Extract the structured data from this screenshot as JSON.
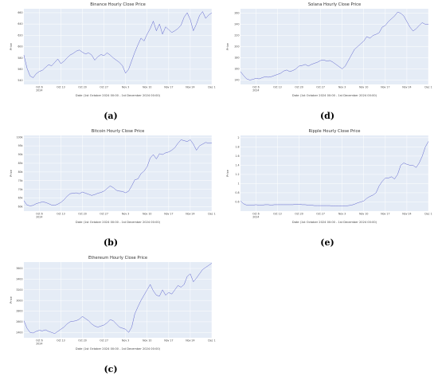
{
  "panels": [
    {
      "caption": "(a)"
    },
    {
      "caption": "(b)"
    },
    {
      "caption": "(c)"
    },
    {
      "caption": "(d)"
    },
    {
      "caption": "(e)"
    }
  ],
  "chart_data": [
    {
      "type": "line",
      "title": "Binance Hourly Close Price",
      "xlabel": "Date (1st October 2024 00:00 - 1st December 2024 00:00)",
      "ylabel": "Price",
      "xlim": [
        0,
        61
      ],
      "ylim": [
        533,
        667
      ],
      "grid": true,
      "x_ticks": [
        {
          "v": 5,
          "l": "Oct 6",
          "s": "2024"
        },
        {
          "v": 12,
          "l": "Oct 13"
        },
        {
          "v": 19,
          "l": "Oct 20"
        },
        {
          "v": 26,
          "l": "Oct 27"
        },
        {
          "v": 33,
          "l": "Nov 3"
        },
        {
          "v": 40,
          "l": "Nov 10"
        },
        {
          "v": 47,
          "l": "Nov 17"
        },
        {
          "v": 54,
          "l": "Nov 24"
        },
        {
          "v": 61,
          "l": "Dec 1"
        }
      ],
      "y_ticks": [
        {
          "v": 540,
          "l": "540"
        },
        {
          "v": 560,
          "l": "560"
        },
        {
          "v": 580,
          "l": "580"
        },
        {
          "v": 600,
          "l": "600"
        },
        {
          "v": 620,
          "l": "620"
        },
        {
          "v": 640,
          "l": "640"
        },
        {
          "v": 660,
          "l": "660"
        }
      ],
      "series": [
        {
          "x": [
            0,
            1,
            2,
            3,
            4,
            5,
            6,
            7,
            8,
            9,
            10,
            11,
            12,
            13,
            14,
            15,
            16,
            17,
            18,
            19,
            20,
            21,
            22,
            23,
            24,
            25,
            26,
            27,
            28,
            29,
            30,
            31,
            32,
            33,
            34,
            35,
            36,
            37,
            38,
            39,
            40,
            41,
            42,
            43,
            44,
            45,
            46,
            47,
            48,
            49,
            50,
            51,
            52,
            53,
            54,
            55,
            56,
            57,
            58,
            59,
            60,
            61
          ],
          "y": [
            585,
            562,
            548,
            545,
            552,
            556,
            558,
            563,
            568,
            566,
            572,
            578,
            570,
            574,
            580,
            585,
            588,
            592,
            594,
            590,
            587,
            589,
            585,
            576,
            582,
            586,
            584,
            589,
            585,
            580,
            576,
            572,
            566,
            553,
            560,
            575,
            590,
            603,
            615,
            610,
            622,
            632,
            645,
            628,
            640,
            622,
            635,
            630,
            625,
            628,
            632,
            638,
            652,
            660,
            648,
            628,
            640,
            655,
            662,
            650,
            656,
            660
          ]
        }
      ]
    },
    {
      "type": "line",
      "title": "Bitcoin Hourly Close Price",
      "xlabel": "Date (1st October 2024 00:00 - 1st December 2024 00:00)",
      "ylabel": "Price",
      "xlim": [
        0,
        61
      ],
      "ylim": [
        57500,
        101000
      ],
      "grid": true,
      "x_ticks": [
        {
          "v": 5,
          "l": "Oct 6",
          "s": "2024"
        },
        {
          "v": 12,
          "l": "Oct 13"
        },
        {
          "v": 19,
          "l": "Oct 20"
        },
        {
          "v": 26,
          "l": "Oct 27"
        },
        {
          "v": 33,
          "l": "Nov 3"
        },
        {
          "v": 40,
          "l": "Nov 10"
        },
        {
          "v": 47,
          "l": "Nov 17"
        },
        {
          "v": 54,
          "l": "Nov 24"
        },
        {
          "v": 61,
          "l": "Dec 1"
        }
      ],
      "y_ticks": [
        {
          "v": 60000,
          "l": "60k"
        },
        {
          "v": 65000,
          "l": "65k"
        },
        {
          "v": 70000,
          "l": "70k"
        },
        {
          "v": 75000,
          "l": "75k"
        },
        {
          "v": 80000,
          "l": "80k"
        },
        {
          "v": 85000,
          "l": "85k"
        },
        {
          "v": 90000,
          "l": "90k"
        },
        {
          "v": 95000,
          "l": "95k"
        },
        {
          "v": 100000,
          "l": "100k"
        }
      ],
      "series": [
        {
          "x": [
            0,
            1,
            2,
            3,
            4,
            5,
            6,
            7,
            8,
            9,
            10,
            11,
            12,
            13,
            14,
            15,
            16,
            17,
            18,
            19,
            20,
            21,
            22,
            23,
            24,
            25,
            26,
            27,
            28,
            29,
            30,
            31,
            32,
            33,
            34,
            35,
            36,
            37,
            38,
            39,
            40,
            41,
            42,
            43,
            44,
            45,
            46,
            47,
            48,
            49,
            50,
            51,
            52,
            53,
            54,
            55,
            56,
            57,
            58,
            59,
            60,
            61
          ],
          "y": [
            63500,
            61000,
            60500,
            60800,
            61800,
            62300,
            62800,
            62500,
            61800,
            61000,
            60800,
            61500,
            62500,
            64000,
            66000,
            67500,
            67800,
            68000,
            67500,
            68500,
            67800,
            67200,
            66500,
            67000,
            67800,
            68200,
            69000,
            70500,
            72000,
            71000,
            69500,
            69000,
            68800,
            68000,
            69000,
            72000,
            75500,
            76000,
            79000,
            80500,
            83000,
            88000,
            90000,
            87500,
            90500,
            90000,
            91000,
            91500,
            92500,
            94000,
            96500,
            98500,
            98000,
            97500,
            98500,
            96000,
            92500,
            95000,
            96000,
            97000,
            96500,
            96800
          ]
        }
      ]
    },
    {
      "type": "line",
      "title": "Ethereum Hourly Close Price",
      "xlabel": "Date (1st October 2024 00:00 - 1st December 2024 00:00)",
      "ylabel": "Price",
      "xlim": [
        0,
        61
      ],
      "ylim": [
        2300,
        3720
      ],
      "grid": true,
      "x_ticks": [
        {
          "v": 5,
          "l": "Oct 6",
          "s": "2024"
        },
        {
          "v": 12,
          "l": "Oct 13"
        },
        {
          "v": 19,
          "l": "Oct 20"
        },
        {
          "v": 26,
          "l": "Oct 27"
        },
        {
          "v": 33,
          "l": "Nov 3"
        },
        {
          "v": 40,
          "l": "Nov 10"
        },
        {
          "v": 47,
          "l": "Nov 17"
        },
        {
          "v": 54,
          "l": "Nov 24"
        },
        {
          "v": 61,
          "l": "Dec 1"
        }
      ],
      "y_ticks": [
        {
          "v": 2400,
          "l": "2400"
        },
        {
          "v": 2600,
          "l": "2600"
        },
        {
          "v": 2800,
          "l": "2800"
        },
        {
          "v": 3000,
          "l": "3000"
        },
        {
          "v": 3200,
          "l": "3200"
        },
        {
          "v": 3400,
          "l": "3400"
        },
        {
          "v": 3600,
          "l": "3600"
        }
      ],
      "series": [
        {
          "x": [
            0,
            1,
            2,
            3,
            4,
            5,
            6,
            7,
            8,
            9,
            10,
            11,
            12,
            13,
            14,
            15,
            16,
            17,
            18,
            19,
            20,
            21,
            22,
            23,
            24,
            25,
            26,
            27,
            28,
            29,
            30,
            31,
            32,
            33,
            34,
            35,
            36,
            37,
            38,
            39,
            40,
            41,
            42,
            43,
            44,
            45,
            46,
            47,
            48,
            49,
            50,
            51,
            52,
            53,
            54,
            55,
            56,
            57,
            58,
            59,
            60,
            61
          ],
          "y": [
            2620,
            2480,
            2400,
            2390,
            2420,
            2440,
            2430,
            2450,
            2420,
            2400,
            2380,
            2420,
            2460,
            2500,
            2560,
            2600,
            2610,
            2620,
            2650,
            2700,
            2660,
            2620,
            2560,
            2520,
            2500,
            2520,
            2540,
            2580,
            2640,
            2620,
            2560,
            2500,
            2480,
            2460,
            2400,
            2500,
            2750,
            2880,
            3000,
            3100,
            3200,
            3300,
            3180,
            3100,
            3080,
            3200,
            3100,
            3150,
            3120,
            3200,
            3280,
            3250,
            3300,
            3450,
            3500,
            3350,
            3420,
            3500,
            3580,
            3620,
            3660,
            3700
          ]
        }
      ]
    },
    {
      "type": "line",
      "title": "Solana Hourly Close Price",
      "xlabel": "Date (1st October 2024 00:00 - 1st December 2024 00:00)",
      "ylabel": "Price",
      "xlim": [
        0,
        61
      ],
      "ylim": [
        132,
        268
      ],
      "grid": true,
      "x_ticks": [
        {
          "v": 5,
          "l": "Oct 6",
          "s": "2024"
        },
        {
          "v": 12,
          "l": "Oct 13"
        },
        {
          "v": 19,
          "l": "Oct 20"
        },
        {
          "v": 26,
          "l": "Oct 27"
        },
        {
          "v": 33,
          "l": "Nov 3"
        },
        {
          "v": 40,
          "l": "Nov 10"
        },
        {
          "v": 47,
          "l": "Nov 17"
        },
        {
          "v": 54,
          "l": "Nov 24"
        },
        {
          "v": 61,
          "l": "Dec 1"
        }
      ],
      "y_ticks": [
        {
          "v": 140,
          "l": "140"
        },
        {
          "v": 160,
          "l": "160"
        },
        {
          "v": 180,
          "l": "180"
        },
        {
          "v": 200,
          "l": "200"
        },
        {
          "v": 220,
          "l": "220"
        },
        {
          "v": 240,
          "l": "240"
        },
        {
          "v": 260,
          "l": "260"
        }
      ],
      "series": [
        {
          "x": [
            0,
            1,
            2,
            3,
            4,
            5,
            6,
            7,
            8,
            9,
            10,
            11,
            12,
            13,
            14,
            15,
            16,
            17,
            18,
            19,
            20,
            21,
            22,
            23,
            24,
            25,
            26,
            27,
            28,
            29,
            30,
            31,
            32,
            33,
            34,
            35,
            36,
            37,
            38,
            39,
            40,
            41,
            42,
            43,
            44,
            45,
            46,
            47,
            48,
            49,
            50,
            51,
            52,
            53,
            54,
            55,
            56,
            57,
            58,
            59,
            60,
            61
          ],
          "y": [
            155,
            148,
            142,
            140,
            141,
            143,
            142,
            144,
            146,
            145,
            146,
            148,
            150,
            152,
            156,
            158,
            155,
            157,
            160,
            165,
            166,
            168,
            165,
            168,
            170,
            172,
            175,
            176,
            174,
            175,
            172,
            168,
            164,
            160,
            165,
            175,
            185,
            195,
            200,
            205,
            210,
            218,
            215,
            220,
            222,
            225,
            235,
            238,
            245,
            250,
            255,
            262,
            260,
            255,
            245,
            235,
            228,
            232,
            238,
            243,
            240,
            240
          ]
        }
      ]
    },
    {
      "type": "line",
      "title": "Ripple Hourly Close Price",
      "xlabel": "Date (1st October 2024 00:00 - 1st December 2024 00:00)",
      "ylabel": "Price",
      "xlim": [
        0,
        61
      ],
      "ylim": [
        0.4,
        2.05
      ],
      "grid": true,
      "x_ticks": [
        {
          "v": 5,
          "l": "Oct 6",
          "s": "2024"
        },
        {
          "v": 12,
          "l": "Oct 13"
        },
        {
          "v": 19,
          "l": "Oct 20"
        },
        {
          "v": 26,
          "l": "Oct 27"
        },
        {
          "v": 33,
          "l": "Nov 3"
        },
        {
          "v": 40,
          "l": "Nov 10"
        },
        {
          "v": 47,
          "l": "Nov 17"
        },
        {
          "v": 54,
          "l": "Nov 24"
        },
        {
          "v": 61,
          "l": "Dec 1"
        }
      ],
      "y_ticks": [
        {
          "v": 0.6,
          "l": "0.6"
        },
        {
          "v": 0.8,
          "l": "0.8"
        },
        {
          "v": 1,
          "l": "1"
        },
        {
          "v": 1.2,
          "l": "1.2"
        },
        {
          "v": 1.4,
          "l": "1.4"
        },
        {
          "v": 1.6,
          "l": "1.6"
        },
        {
          "v": 1.8,
          "l": "1.8"
        },
        {
          "v": 2,
          "l": "2"
        }
      ],
      "series": [
        {
          "x": [
            0,
            1,
            2,
            3,
            4,
            5,
            6,
            7,
            8,
            9,
            10,
            11,
            12,
            13,
            14,
            15,
            16,
            17,
            18,
            19,
            20,
            21,
            22,
            23,
            24,
            25,
            26,
            27,
            28,
            29,
            30,
            31,
            32,
            33,
            34,
            35,
            36,
            37,
            38,
            39,
            40,
            41,
            42,
            43,
            44,
            45,
            46,
            47,
            48,
            49,
            50,
            51,
            52,
            53,
            54,
            55,
            56,
            57,
            58,
            59,
            60,
            61
          ],
          "y": [
            0.62,
            0.56,
            0.53,
            0.53,
            0.53,
            0.54,
            0.53,
            0.53,
            0.54,
            0.54,
            0.53,
            0.54,
            0.54,
            0.54,
            0.54,
            0.54,
            0.54,
            0.54,
            0.55,
            0.55,
            0.54,
            0.54,
            0.53,
            0.53,
            0.52,
            0.52,
            0.52,
            0.52,
            0.52,
            0.52,
            0.51,
            0.51,
            0.51,
            0.51,
            0.51,
            0.52,
            0.53,
            0.55,
            0.58,
            0.6,
            0.62,
            0.68,
            0.72,
            0.75,
            0.8,
            0.95,
            1.05,
            1.12,
            1.12,
            1.15,
            1.1,
            1.2,
            1.4,
            1.45,
            1.42,
            1.4,
            1.4,
            1.35,
            1.45,
            1.6,
            1.8,
            1.92
          ]
        }
      ]
    }
  ]
}
